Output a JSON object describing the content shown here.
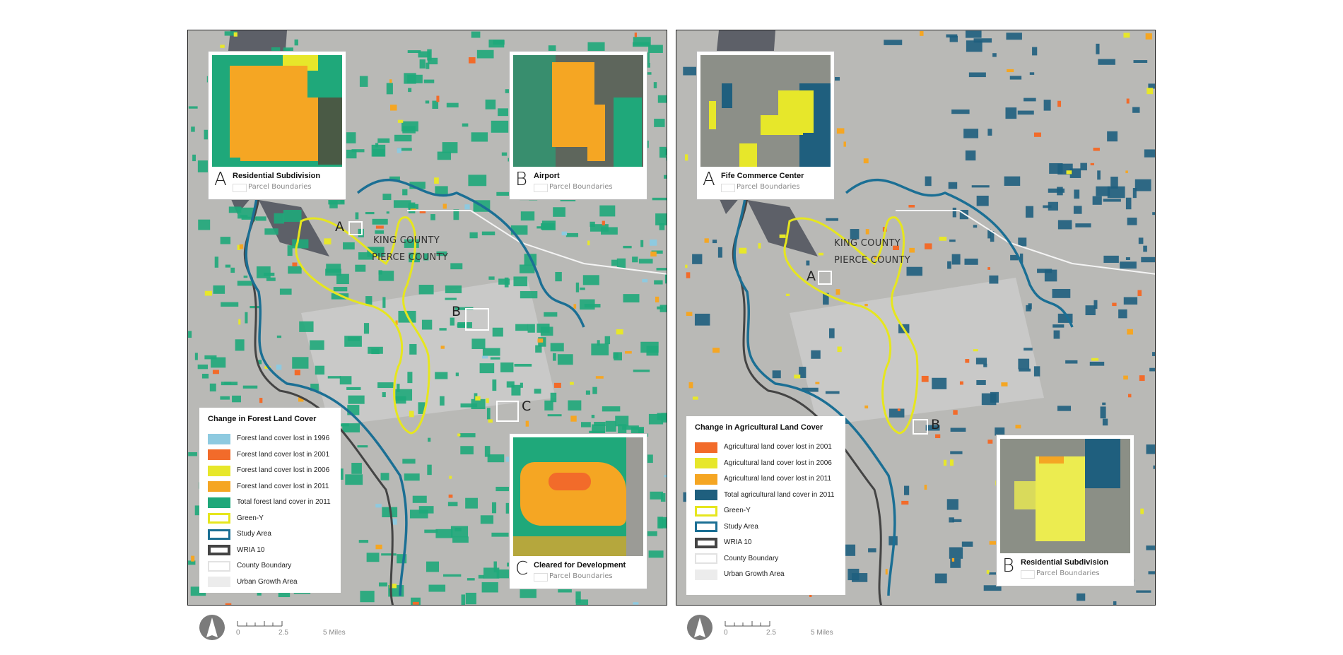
{
  "colors": {
    "forest": "#1fa87a",
    "forest_1996": "#8ecae0",
    "lost_2001": "#f26b2a",
    "lost_2006": "#e7e72a",
    "lost_2011": "#f5a623",
    "agri": "#1f5f7e",
    "green_y": "#e6e61e",
    "study_area": "#1b6f94",
    "wria": "#444444",
    "urban": "#d7d7d7",
    "background": "#b9b9b6"
  },
  "left_map": {
    "king_county": "KING COUNTY",
    "pierce_county": "PIERCE COUNTY",
    "markers": [
      "A",
      "B",
      "C"
    ],
    "insets": [
      {
        "letter": "A",
        "title": "Residential Subdivision",
        "sublabel": "Parcel Boundaries"
      },
      {
        "letter": "B",
        "title": "Airport",
        "sublabel": "Parcel Boundaries"
      },
      {
        "letter": "C",
        "title": "Cleared for Development",
        "sublabel": "Parcel Boundaries"
      }
    ],
    "legend": {
      "title": "Change in Forest Land Cover",
      "items": [
        "Forest land cover lost in 1996",
        "Forest land cover lost in 2001",
        "Forest land cover lost in 2006",
        "Forest land cover lost in 2011",
        "Total forest land cover in 2011",
        "Green-Y",
        "Study Area",
        "WRIA 10",
        "County Boundary",
        "Urban Growth Area"
      ]
    },
    "scale": {
      "ticks": [
        "0",
        "2.5",
        "5 Miles"
      ],
      "north_icon": "north-arrow-icon"
    }
  },
  "right_map": {
    "king_county": "KING COUNTY",
    "pierce_county": "PIERCE COUNTY",
    "markers": [
      "A",
      "B"
    ],
    "insets": [
      {
        "letter": "A",
        "title": "Fife Commerce Center",
        "sublabel": "Parcel Boundaries"
      },
      {
        "letter": "B",
        "title": "Residential Subdivision",
        "sublabel": "Parcel Boundaries"
      }
    ],
    "legend": {
      "title": "Change in Agricultural Land Cover",
      "items": [
        "Agricultural land cover lost in 2001",
        "Agricultural land cover lost in 2006",
        "Agricultural land cover lost in 2011",
        "Total agricultural land cover in 2011",
        "Green-Y",
        "Study Area",
        "WRIA 10",
        "County Boundary",
        "Urban Growth Area"
      ]
    },
    "scale": {
      "ticks": [
        "0",
        "2.5",
        "5 Miles"
      ],
      "north_icon": "north-arrow-icon"
    }
  }
}
